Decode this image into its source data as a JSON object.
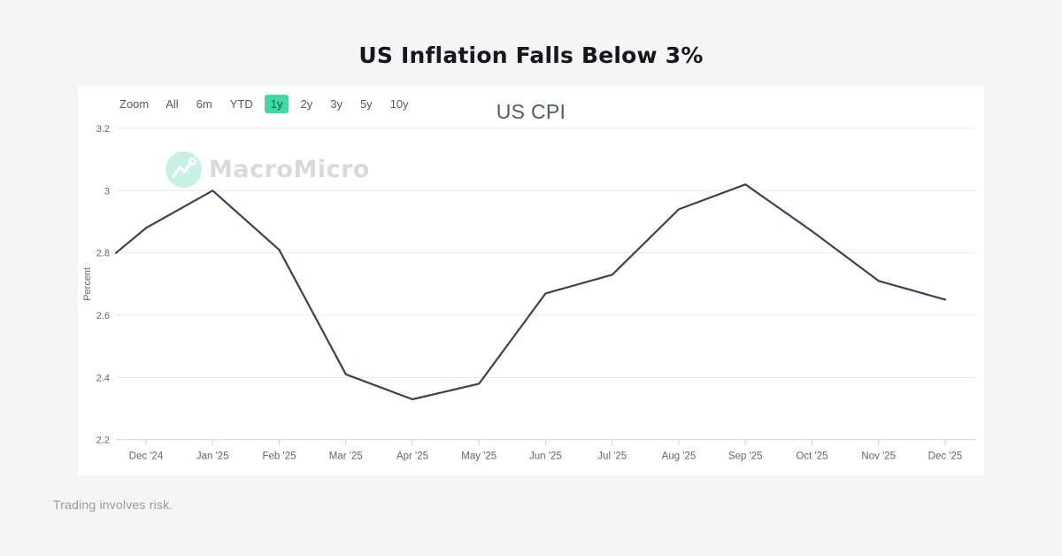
{
  "page": {
    "title": "US Inflation Falls Below 3%",
    "footer": "Trading involves risk."
  },
  "toolbar": {
    "zoom_label": "Zoom",
    "ranges": [
      "All",
      "6m",
      "YTD",
      "1y",
      "2y",
      "3y",
      "5y",
      "10y"
    ],
    "selected_range": "1y",
    "selected_bg": "#3fd9a4"
  },
  "watermark": {
    "brand": "MacroMicro",
    "icon_bg": "#c6f1e4"
  },
  "chart_data": {
    "type": "line",
    "title": "US CPI",
    "xlabel": "",
    "ylabel": "Percent",
    "categories": [
      "Dec '24",
      "Jan '25",
      "Feb '25",
      "Mar '25",
      "Apr '25",
      "May '25",
      "Jun '25",
      "Jul '25",
      "Aug '25",
      "Sep '25",
      "Oct '25",
      "Nov '25",
      "Dec '25"
    ],
    "values": [
      2.88,
      3,
      2.81,
      2.41,
      2.33,
      2.38,
      2.67,
      2.73,
      2.94,
      3.02,
      2.87,
      2.71,
      2.65
    ],
    "lead_in_value": 2.8,
    "yticks": [
      3.2,
      3,
      2.8,
      2.6,
      2.4,
      2.2
    ],
    "ylim": [
      2.2,
      3.2
    ],
    "grid": true,
    "legend": "none",
    "line_color": "#3f415a",
    "grid_color": "#e8e8e8",
    "axis_color": "#ccd2dd",
    "tick_text_color": "#666666"
  }
}
